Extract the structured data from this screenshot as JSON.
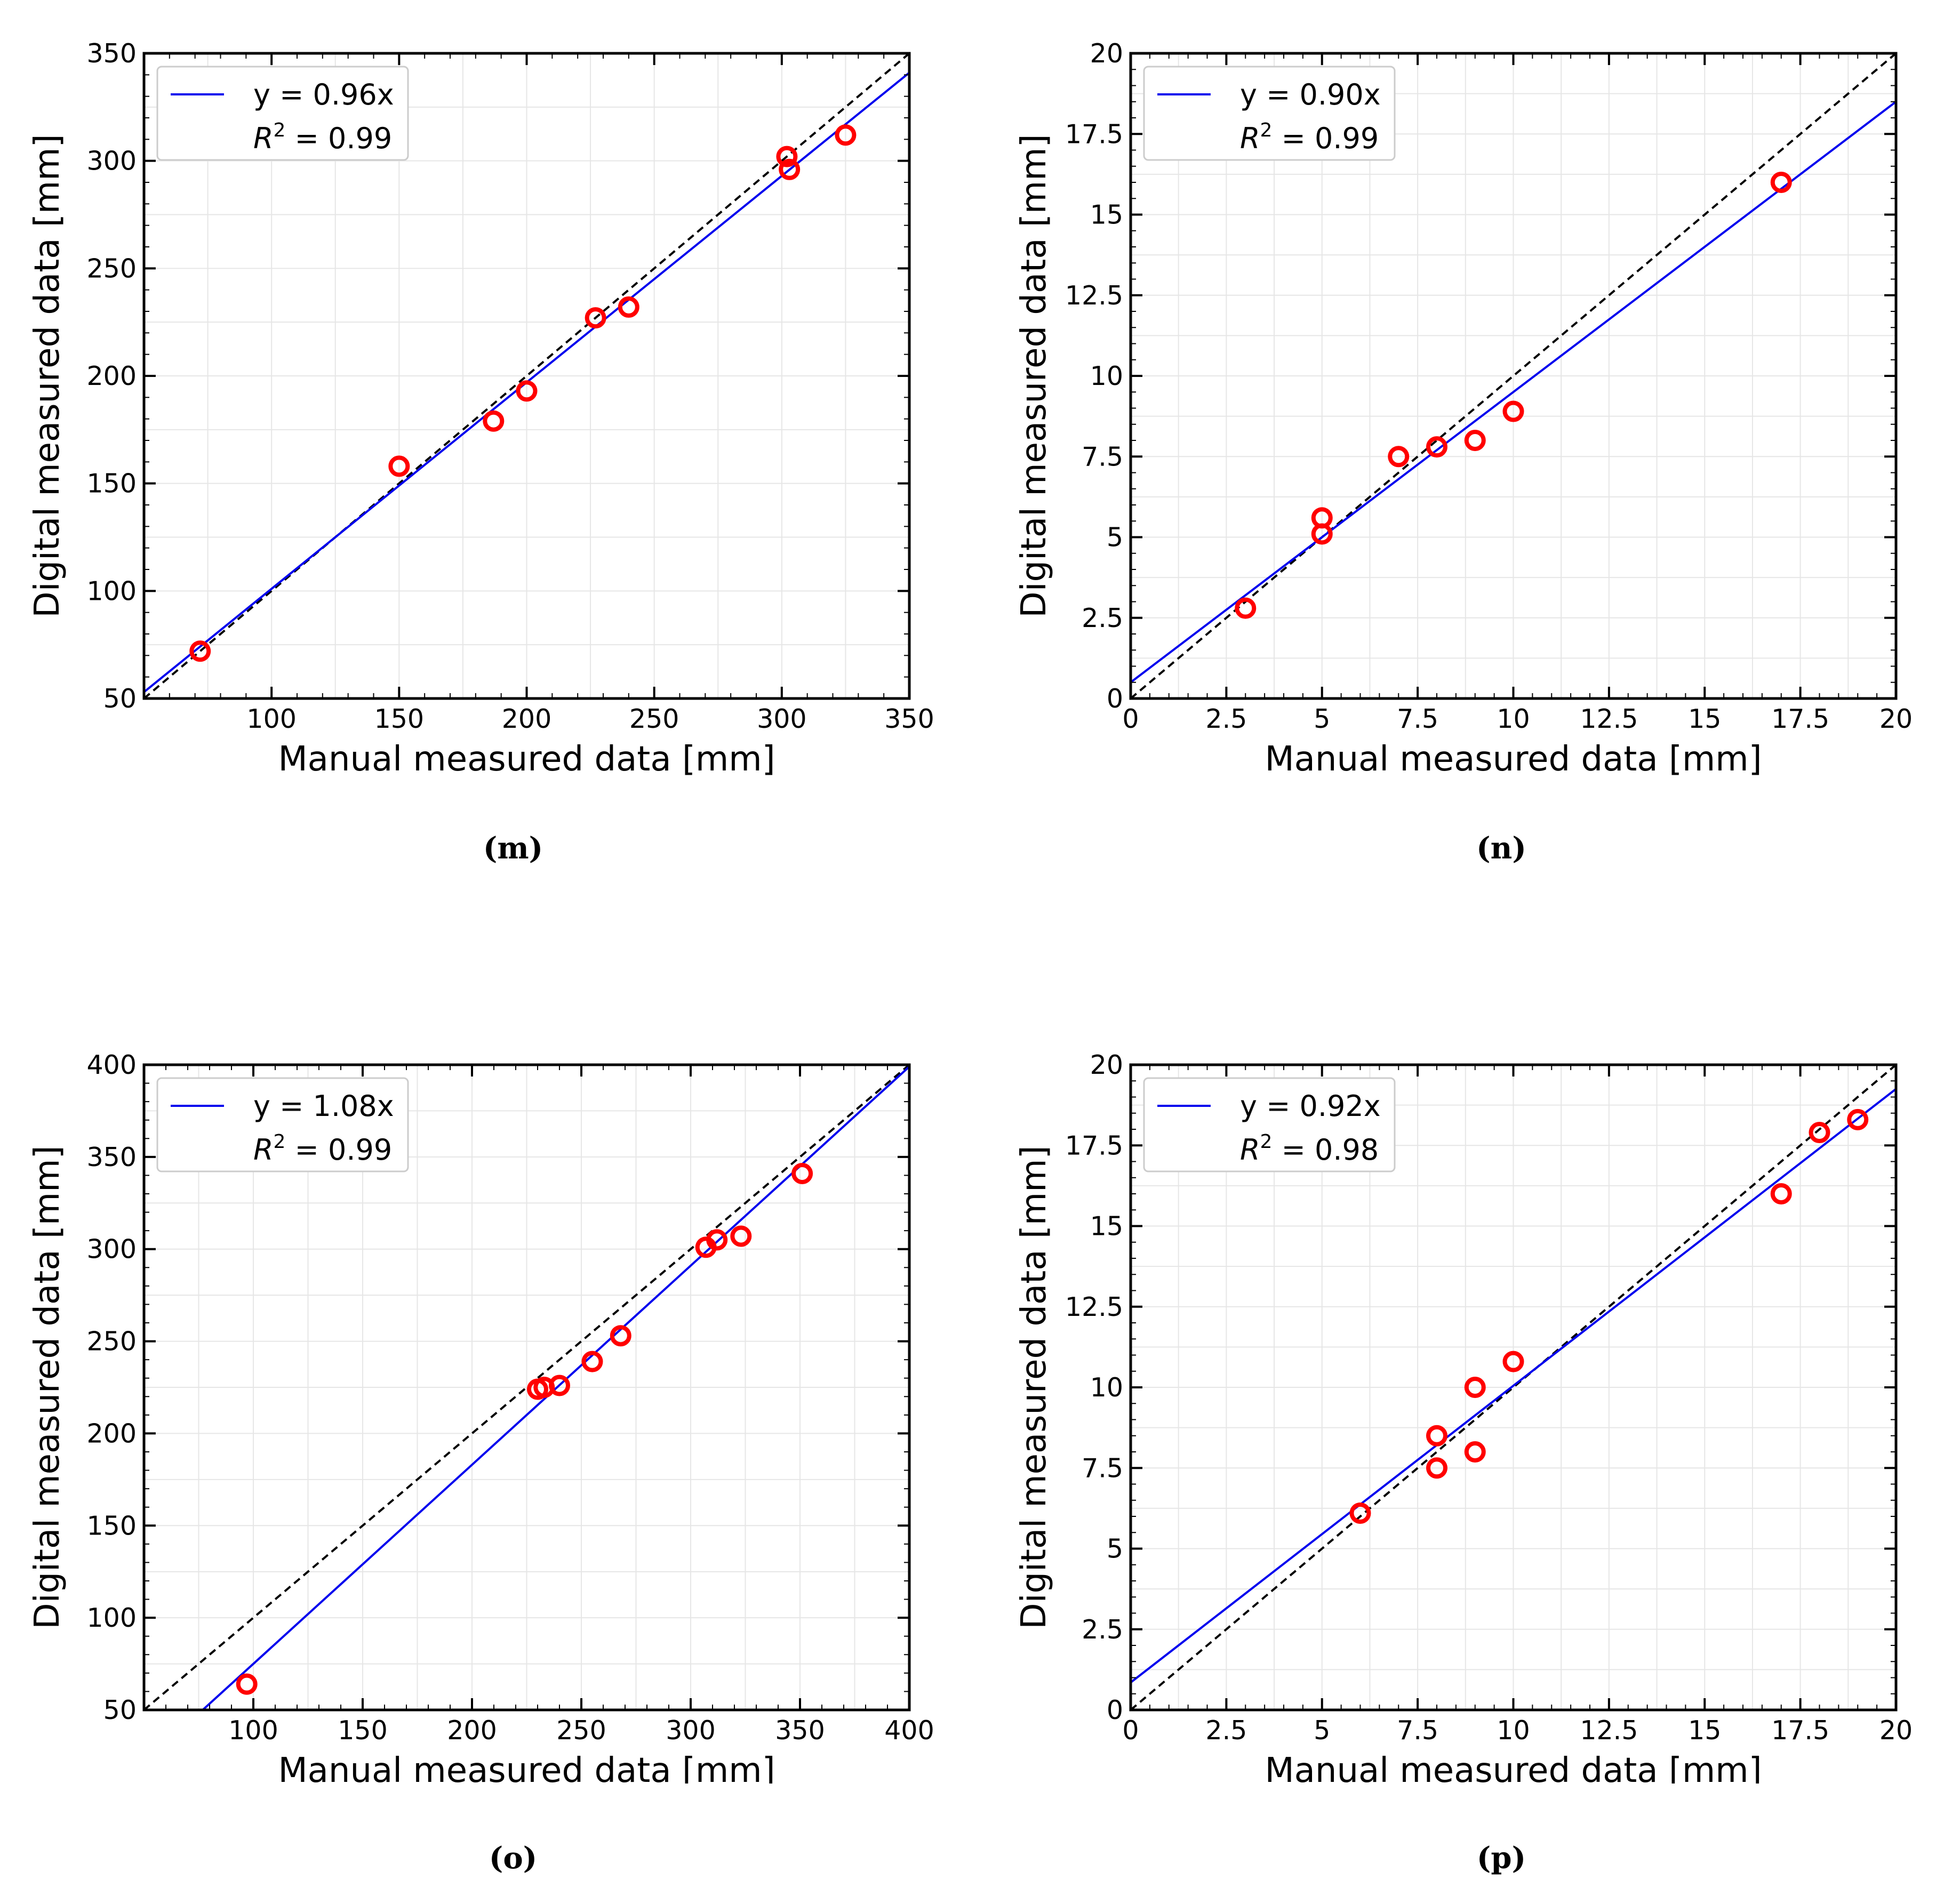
{
  "chart_data": [
    {
      "panel_label": "(m)",
      "type": "scatter",
      "xlabel": "Manual measured data [mm]",
      "ylabel": "Digital measured data [mm]",
      "xlim": [
        50,
        350
      ],
      "ylim": [
        50,
        350
      ],
      "xticks": [
        100,
        150,
        200,
        250,
        300,
        350
      ],
      "yticks": [
        50,
        100,
        150,
        200,
        250,
        300,
        350
      ],
      "xtick_labels": [
        "100",
        "150",
        "200",
        "250",
        "300",
        "350"
      ],
      "ytick_labels": [
        "50",
        "100",
        "150",
        "200",
        "250",
        "300",
        "350"
      ],
      "grid": true,
      "legend_position": "top-left",
      "fit": {
        "label": "y = 0.96x",
        "r2_label": "= 0.99",
        "slope": 0.96,
        "intercept": 5,
        "color": "#0000ee"
      },
      "identity_line": true,
      "marker_color": "#ff0000",
      "points": [
        {
          "x": 72,
          "y": 72
        },
        {
          "x": 150,
          "y": 158
        },
        {
          "x": 187,
          "y": 179
        },
        {
          "x": 200,
          "y": 193
        },
        {
          "x": 227,
          "y": 227
        },
        {
          "x": 240,
          "y": 232
        },
        {
          "x": 302,
          "y": 302
        },
        {
          "x": 303,
          "y": 296
        },
        {
          "x": 325,
          "y": 312
        }
      ]
    },
    {
      "panel_label": "(n)",
      "type": "scatter",
      "xlabel": "Manual measured data [mm]",
      "ylabel": "Digital measured data [mm]",
      "xlim": [
        0,
        20
      ],
      "ylim": [
        0,
        20
      ],
      "xticks": [
        0,
        2.5,
        5,
        7.5,
        10,
        12.5,
        15,
        17.5,
        20
      ],
      "yticks": [
        0,
        2.5,
        5,
        7.5,
        10,
        12.5,
        15,
        17.5,
        20
      ],
      "xtick_labels": [
        "0",
        "2.5",
        "5",
        "7.5",
        "10",
        "12.5",
        "15",
        "17.5",
        "20"
      ],
      "ytick_labels": [
        "0",
        "2.5",
        "5",
        "7.5",
        "10",
        "12.5",
        "15",
        "17.5",
        "20"
      ],
      "grid": true,
      "legend_position": "top-left",
      "fit": {
        "label": "y = 0.90x",
        "r2_label": "= 0.99",
        "slope": 0.9,
        "intercept": 0.5,
        "color": "#0000ee"
      },
      "identity_line": true,
      "marker_color": "#ff0000",
      "points": [
        {
          "x": 3,
          "y": 2.8
        },
        {
          "x": 5,
          "y": 5.1
        },
        {
          "x": 5,
          "y": 5.6
        },
        {
          "x": 7,
          "y": 7.5
        },
        {
          "x": 8,
          "y": 7.8
        },
        {
          "x": 9,
          "y": 8.0
        },
        {
          "x": 10,
          "y": 8.9
        },
        {
          "x": 17,
          "y": 16.0
        }
      ]
    },
    {
      "panel_label": "(o)",
      "type": "scatter",
      "xlabel": "Manual measured data [mm]",
      "ylabel": "Digital measured data [mm]",
      "xlim": [
        50,
        400
      ],
      "ylim": [
        50,
        400
      ],
      "xticks": [
        100,
        150,
        200,
        250,
        300,
        350,
        400
      ],
      "yticks": [
        50,
        100,
        150,
        200,
        250,
        300,
        350,
        400
      ],
      "xtick_labels": [
        "100",
        "150",
        "200",
        "250",
        "300",
        "350",
        "400"
      ],
      "ytick_labels": [
        "50",
        "100",
        "150",
        "200",
        "250",
        "300",
        "350",
        "400"
      ],
      "grid": true,
      "legend_position": "top-left",
      "fit": {
        "label": "y = 1.08x",
        "r2_label": "= 0.99",
        "slope": 1.08,
        "intercept": -33,
        "color": "#0000ee"
      },
      "identity_line": true,
      "marker_color": "#ff0000",
      "points": [
        {
          "x": 97,
          "y": 64
        },
        {
          "x": 230,
          "y": 224
        },
        {
          "x": 233,
          "y": 225
        },
        {
          "x": 240,
          "y": 226
        },
        {
          "x": 255,
          "y": 239
        },
        {
          "x": 268,
          "y": 253
        },
        {
          "x": 307,
          "y": 301
        },
        {
          "x": 312,
          "y": 305
        },
        {
          "x": 323,
          "y": 307
        },
        {
          "x": 351,
          "y": 341
        }
      ]
    },
    {
      "panel_label": "(p)",
      "type": "scatter",
      "xlabel": "Manual measured data [mm]",
      "ylabel": "Digital measured data [mm]",
      "xlim": [
        0,
        20
      ],
      "ylim": [
        0,
        20
      ],
      "xticks": [
        0,
        2.5,
        5,
        7.5,
        10,
        12.5,
        15,
        17.5,
        20
      ],
      "yticks": [
        0,
        2.5,
        5,
        7.5,
        10,
        12.5,
        15,
        17.5,
        20
      ],
      "xtick_labels": [
        "0",
        "2.5",
        "5",
        "7.5",
        "10",
        "12.5",
        "15",
        "17.5",
        "20"
      ],
      "ytick_labels": [
        "0",
        "2.5",
        "5",
        "7.5",
        "10",
        "12.5",
        "15",
        "17.5",
        "20"
      ],
      "grid": true,
      "legend_position": "top-left",
      "fit": {
        "label": "y = 0.92x",
        "r2_label": "= 0.98",
        "slope": 0.92,
        "intercept": 0.85,
        "color": "#0000ee"
      },
      "identity_line": true,
      "marker_color": "#ff0000",
      "points": [
        {
          "x": 6,
          "y": 6.1
        },
        {
          "x": 8,
          "y": 7.5
        },
        {
          "x": 8,
          "y": 8.5
        },
        {
          "x": 9,
          "y": 8.0
        },
        {
          "x": 9,
          "y": 10.0
        },
        {
          "x": 10,
          "y": 10.8
        },
        {
          "x": 17,
          "y": 16.0
        },
        {
          "x": 18,
          "y": 17.9
        },
        {
          "x": 19,
          "y": 18.3
        }
      ]
    }
  ]
}
